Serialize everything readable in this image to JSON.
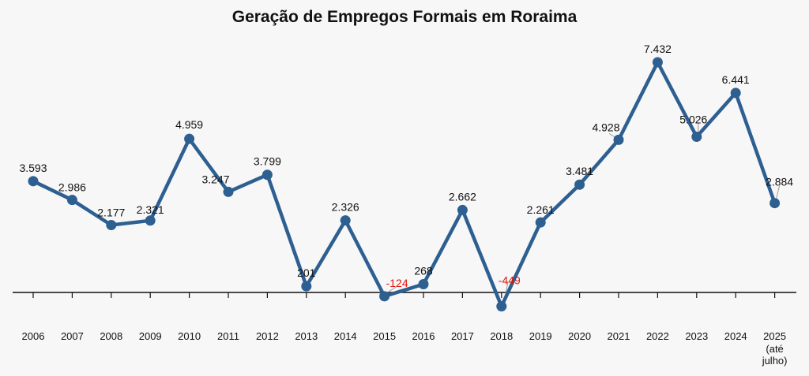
{
  "chart_data": {
    "type": "line",
    "title": "Geração de Empregos Formais em Roraima",
    "xlabel": "",
    "ylabel": "",
    "ylim": [
      -500,
      8000
    ],
    "grid": false,
    "categories": [
      "2006",
      "2007",
      "2008",
      "2009",
      "2010",
      "2011",
      "2012",
      "2013",
      "2014",
      "2015",
      "2016",
      "2017",
      "2018",
      "2019",
      "2020",
      "2021",
      "2022",
      "2023",
      "2024",
      "2025"
    ],
    "category_sublabels": {
      "2025": [
        "(até",
        "julho)"
      ]
    },
    "values": [
      3593,
      2986,
      2177,
      2321,
      4959,
      3247,
      3799,
      201,
      2326,
      -124,
      268,
      2662,
      -449,
      2261,
      3481,
      4928,
      7432,
      5026,
      6441,
      2884
    ],
    "value_labels": [
      "3.593",
      "2.986",
      "2.177",
      "2.321",
      "4.959",
      "3.247",
      "3.799",
      "201",
      "2.326",
      "-124",
      "268",
      "2.662",
      "-449",
      "2.261",
      "3.481",
      "4.928",
      "7.432",
      "5.026",
      "6.441",
      "2.884"
    ],
    "colors": {
      "line": "#2d5f91",
      "negative_label": "#e3120b",
      "axis": "#111111",
      "background": "#f7f7f7"
    }
  }
}
